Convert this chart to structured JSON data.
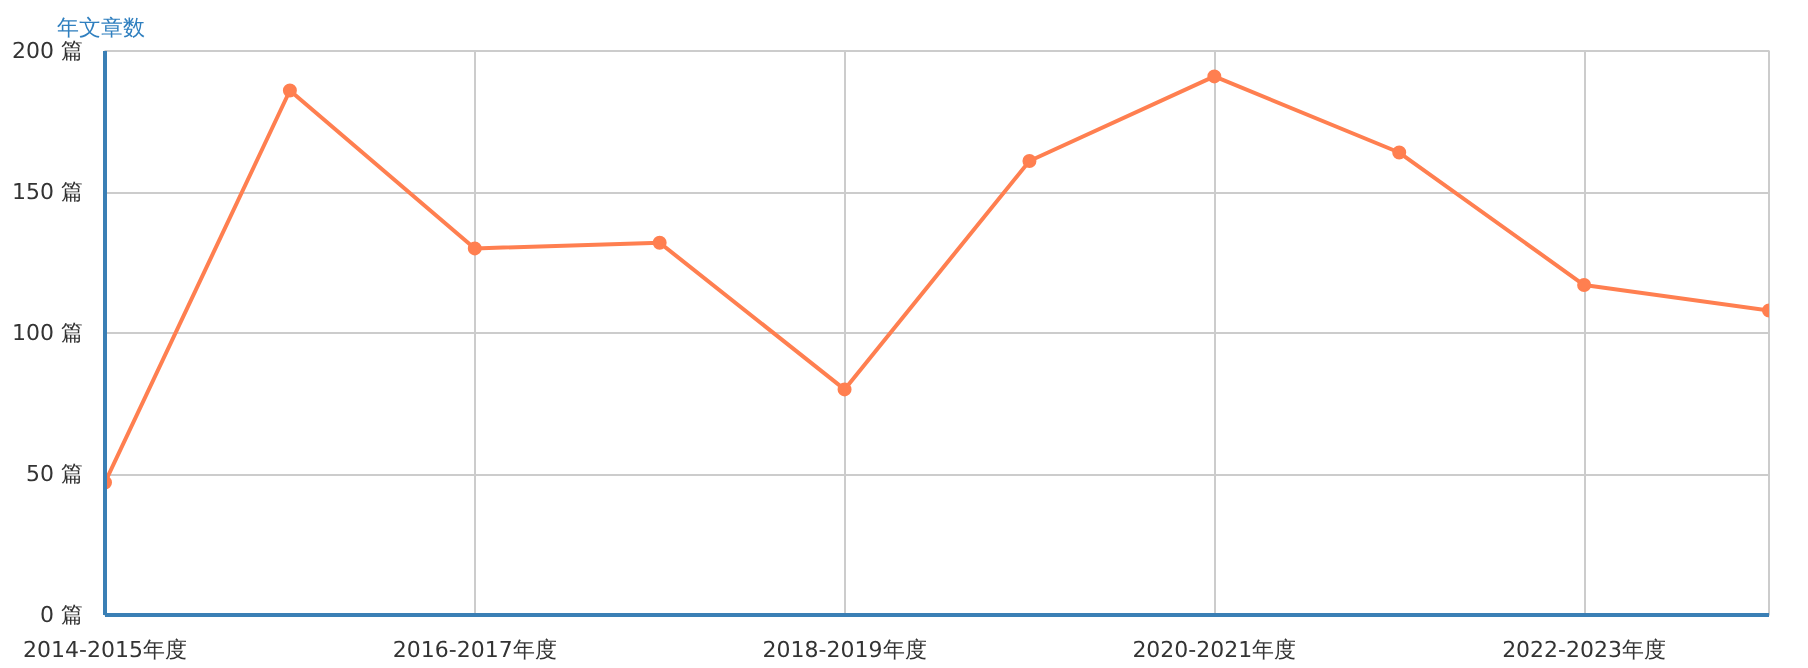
{
  "chart_data": {
    "type": "line",
    "ylabel": "年文章数",
    "categories": [
      "2014-2015年度",
      null,
      "2016-2017年度",
      null,
      "2018-2019年度",
      null,
      "2020-2021年度",
      null,
      "2022-2023年度",
      null
    ],
    "series": [
      {
        "color": "#ff7f50",
        "values": [
          47,
          186,
          130,
          132,
          80,
          161,
          191,
          164,
          117,
          108
        ]
      }
    ],
    "ylim": [
      0,
      200
    ],
    "yticks": [
      {
        "value": 0,
        "label": "0 篇"
      },
      {
        "value": 50,
        "label": "50 篇"
      },
      {
        "value": 100,
        "label": "100 篇"
      },
      {
        "value": 150,
        "label": "150 篇"
      },
      {
        "value": 200,
        "label": "200 篇"
      }
    ],
    "grid": true,
    "marker": "circle",
    "line_style": "solid"
  }
}
